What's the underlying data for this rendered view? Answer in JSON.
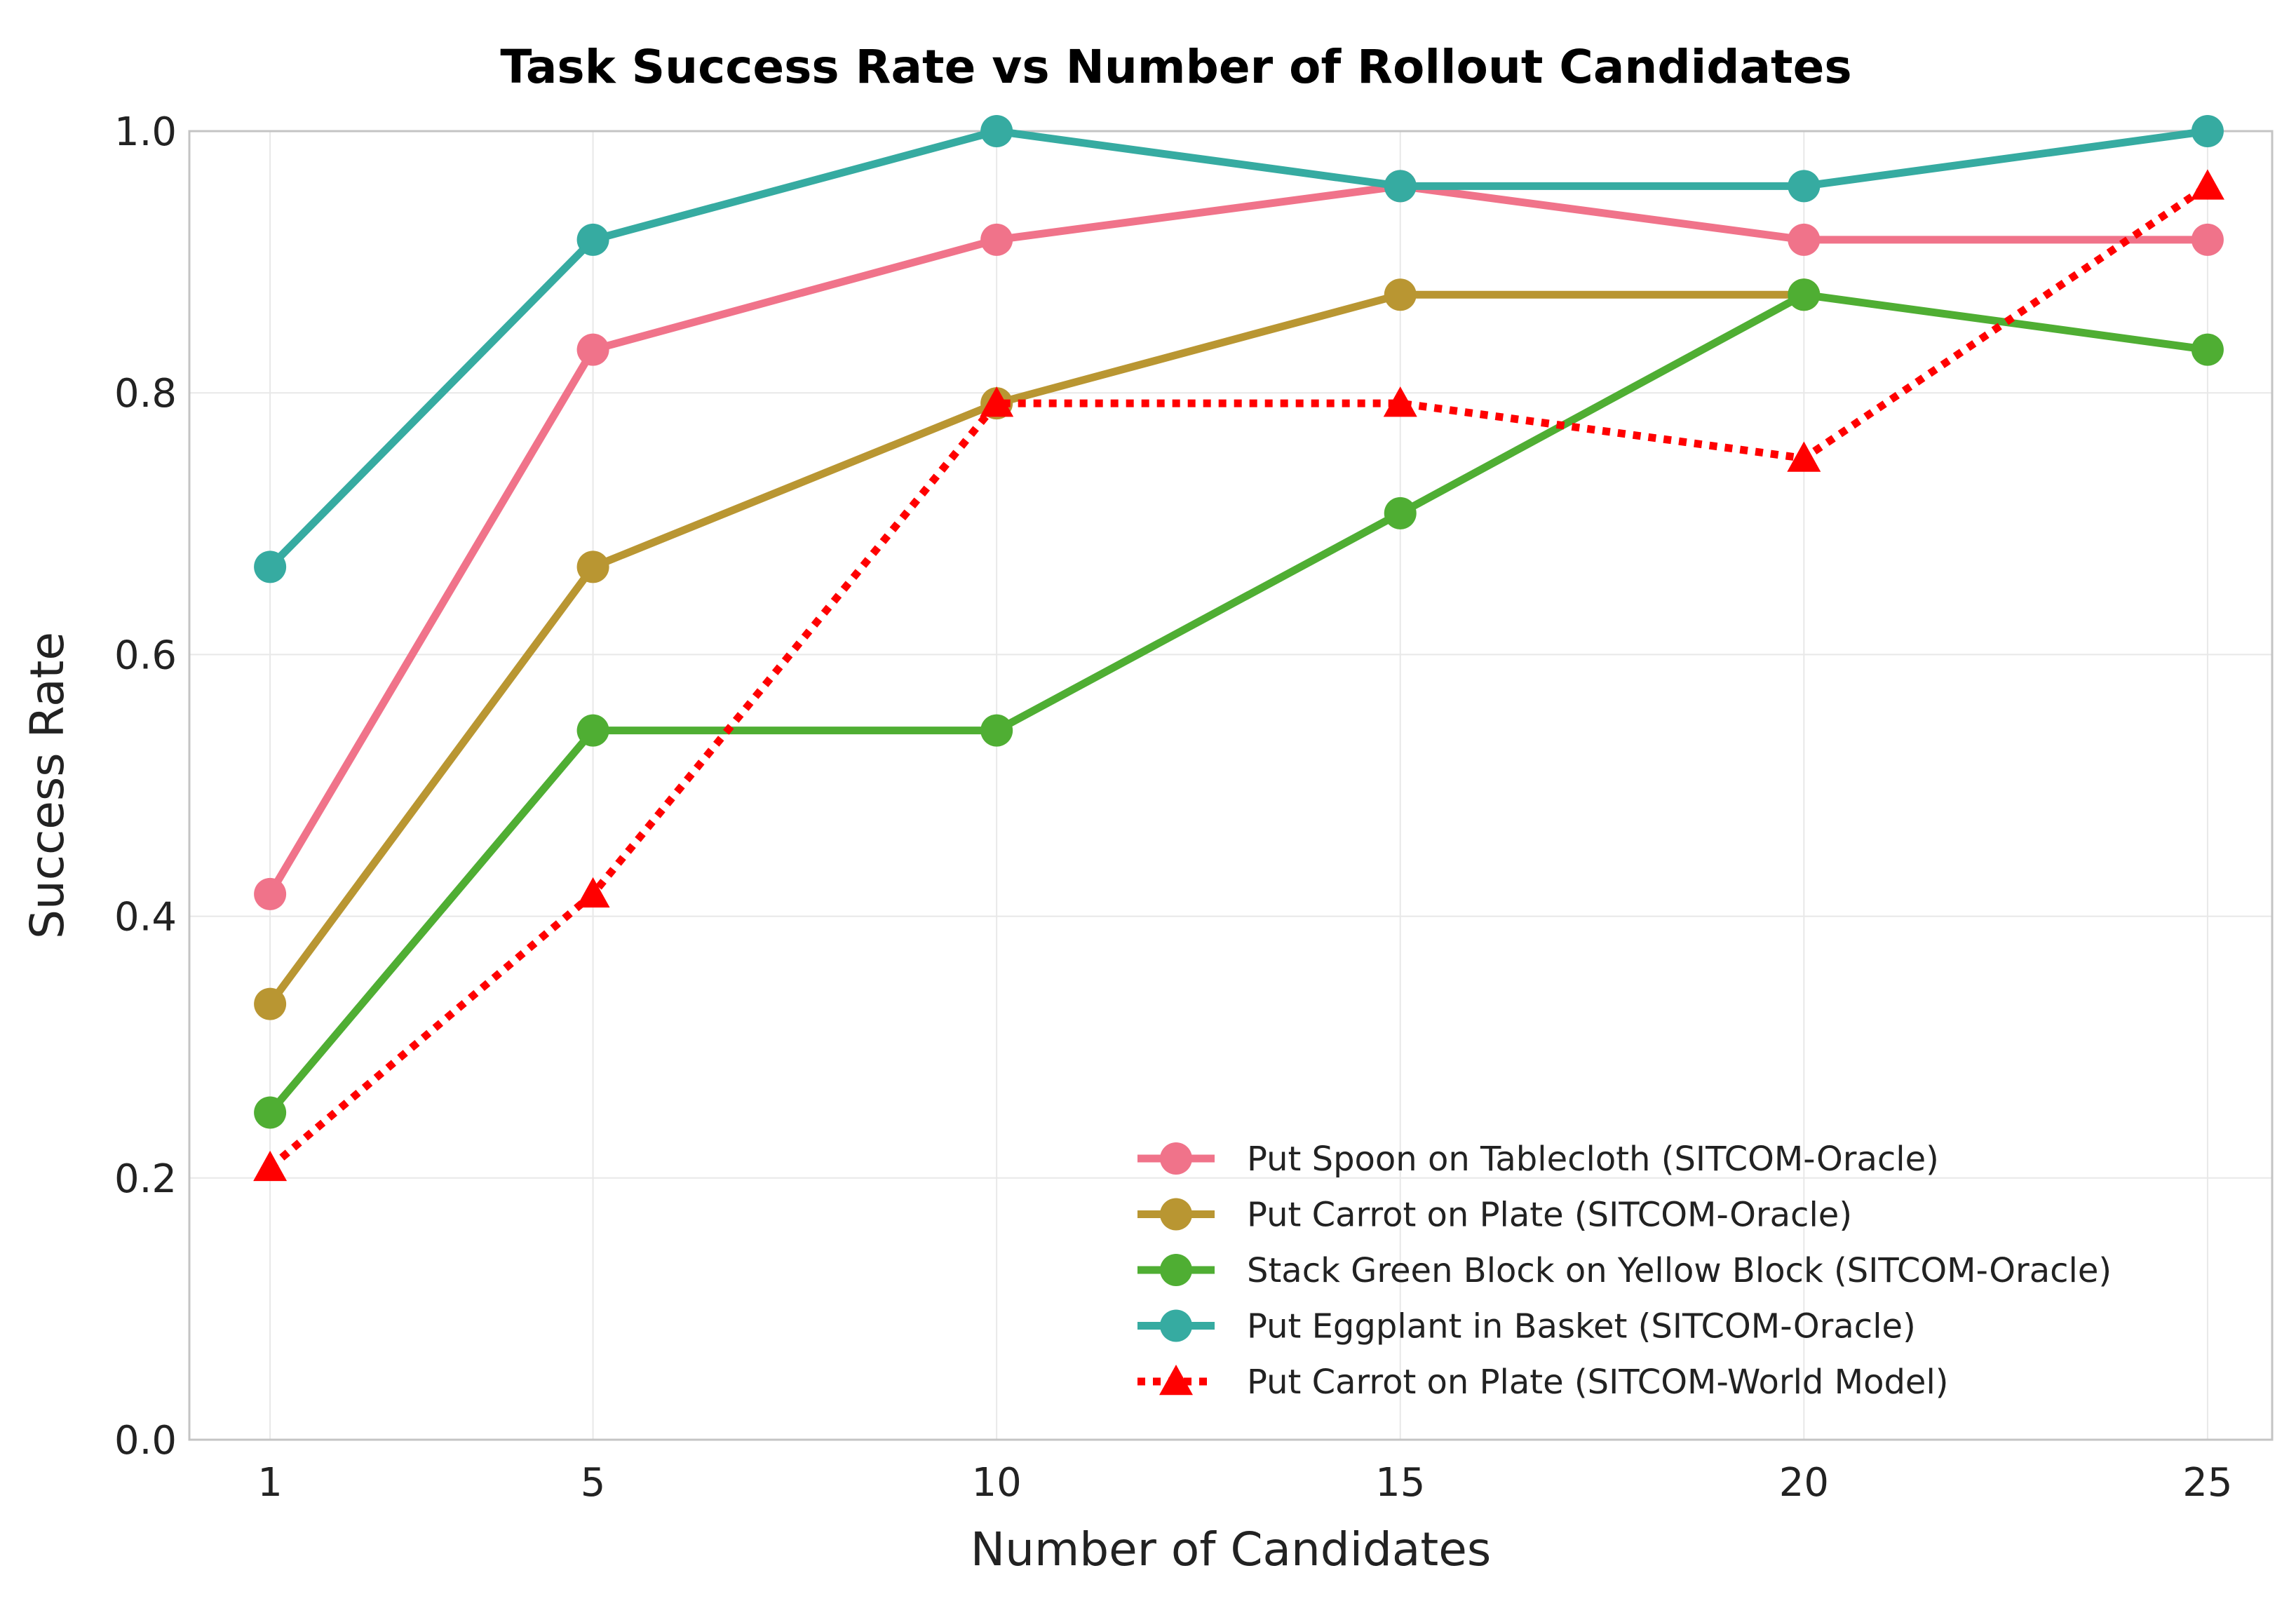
{
  "chart_data": {
    "type": "line",
    "title": "Task Success Rate vs Number of Rollout Candidates",
    "xlabel": "Number of Candidates",
    "ylabel": "Success Rate",
    "x": [
      1,
      5,
      10,
      15,
      20,
      25
    ],
    "x_tick_labels": [
      "1",
      "5",
      "10",
      "15",
      "20",
      "25"
    ],
    "y_ticks": [
      0.0,
      0.2,
      0.4,
      0.6,
      0.8,
      1.0
    ],
    "y_tick_labels": [
      "0.0",
      "0.2",
      "0.4",
      "0.6",
      "0.8",
      "1.0"
    ],
    "xlim": [
      0.0,
      25.8
    ],
    "ylim": [
      0.0,
      1.0
    ],
    "grid": true,
    "legend_position": "bottom-right",
    "series": [
      {
        "name": "Put Spoon on Tablecloth (SITCOM-Oracle)",
        "color": "#f0738a",
        "marker": "circle",
        "line_style": "solid",
        "values": [
          0.417,
          0.833,
          0.917,
          0.958,
          0.917,
          0.917
        ]
      },
      {
        "name": "Put Carrot on Plate (SITCOM-Oracle)",
        "color": "#b99632",
        "marker": "circle",
        "line_style": "solid",
        "values": [
          0.333,
          0.667,
          0.792,
          0.875,
          0.875,
          null
        ]
      },
      {
        "name": "Stack Green Block on Yellow Block (SITCOM-Oracle)",
        "color": "#4fae33",
        "marker": "circle",
        "line_style": "solid",
        "values": [
          0.25,
          0.542,
          0.542,
          0.708,
          0.875,
          0.833
        ]
      },
      {
        "name": "Put Eggplant in Basket (SITCOM-Oracle)",
        "color": "#36aba1",
        "marker": "circle",
        "line_style": "solid",
        "values": [
          0.667,
          0.917,
          1.0,
          0.958,
          0.958,
          1.0
        ]
      },
      {
        "name": "Put Carrot on Plate (SITCOM-World Model)",
        "color": "#ff0000",
        "marker": "triangle",
        "line_style": "dotted",
        "values": [
          0.208,
          0.417,
          0.792,
          0.792,
          0.75,
          0.958
        ]
      }
    ]
  }
}
